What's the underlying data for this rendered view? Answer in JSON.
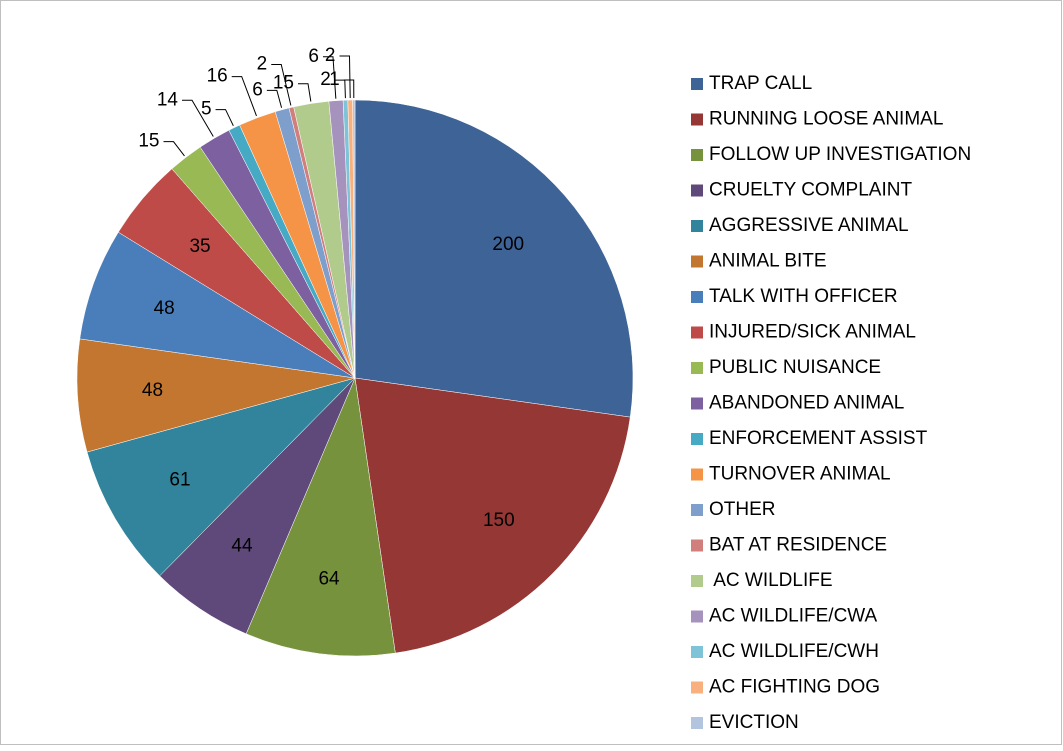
{
  "chart_data": {
    "type": "pie",
    "categories": [
      "TRAP CALL",
      "RUNNING LOOSE ANIMAL",
      "FOLLOW UP INVESTIGATION",
      "CRUELTY COMPLAINT",
      "AGGRESSIVE ANIMAL",
      "ANIMAL BITE",
      "TALK WITH OFFICER",
      "INJURED/SICK ANIMAL",
      "PUBLIC NUISANCE",
      "ABANDONED ANIMAL",
      "ENFORCEMENT ASSIST",
      "TURNOVER ANIMAL",
      "OTHER",
      "BAT AT RESIDENCE",
      " AC WILDLIFE",
      "AC WILDLIFE/CWA",
      "AC WILDLIFE/CWH",
      "AC FIGHTING DOG",
      "EVICTION"
    ],
    "values": [
      200,
      150,
      64,
      44,
      61,
      48,
      48,
      35,
      15,
      14,
      5,
      16,
      6,
      2,
      15,
      6,
      2,
      2,
      1
    ],
    "colors": [
      "#3e6497",
      "#953735",
      "#76923c",
      "#5f497a",
      "#31849b",
      "#c3762f",
      "#4a7ebb",
      "#be4b48",
      "#98b954",
      "#7d60a0",
      "#46aac5",
      "#f59447",
      "#7e9fcc",
      "#d07f7d",
      "#b1cb8c",
      "#a693bd",
      "#7ec3d8",
      "#f8b07f",
      "#b3c4de"
    ],
    "legend": "right"
  }
}
